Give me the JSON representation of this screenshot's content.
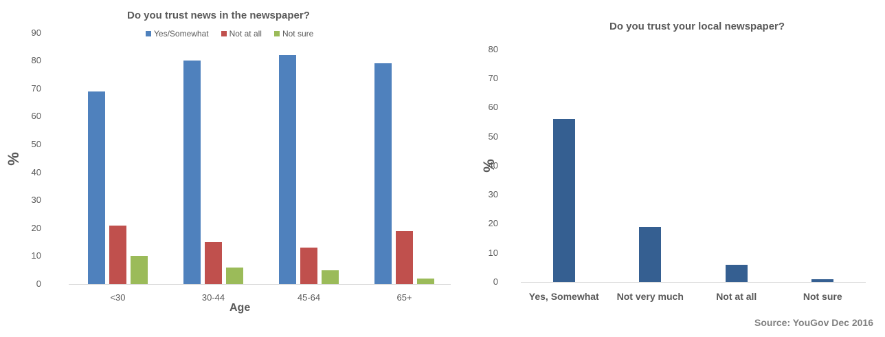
{
  "colors": {
    "yes": "#4f81bd",
    "not_at_all": "#c0504d",
    "not_sure": "#9bbb59",
    "local": "#355f91"
  },
  "chart_data": [
    {
      "type": "bar",
      "title": "Do you trust news in the newspaper?",
      "xlabel": "Age",
      "ylabel": "%",
      "categories": [
        "<30",
        "30-44",
        "45-64",
        "65+"
      ],
      "series": [
        {
          "name": "Yes/Somewhat",
          "values": [
            69,
            80,
            82,
            79
          ]
        },
        {
          "name": "Not at all",
          "values": [
            21,
            15,
            13,
            19
          ]
        },
        {
          "name": "Not sure",
          "values": [
            10,
            6,
            5,
            2
          ]
        }
      ],
      "yticks": [
        "90",
        "80",
        "70",
        "60",
        "50",
        "40",
        "30",
        "20",
        "10",
        "0"
      ],
      "ylim": [
        0,
        90
      ],
      "grid": false,
      "legend_position": "top"
    },
    {
      "type": "bar",
      "title": "Do you trust your local newspaper?",
      "xlabel": "",
      "ylabel": "%",
      "categories": [
        "Yes, Somewhat",
        "Not very much",
        "Not at all",
        "Not sure"
      ],
      "values": [
        56,
        19,
        6,
        1
      ],
      "yticks": [
        "80",
        "70",
        "60",
        "50",
        "40",
        "30",
        "20",
        "10",
        "0"
      ],
      "ylim": [
        0,
        80
      ],
      "grid": false,
      "annotation": "Source:  YouGov Dec 2016"
    }
  ]
}
